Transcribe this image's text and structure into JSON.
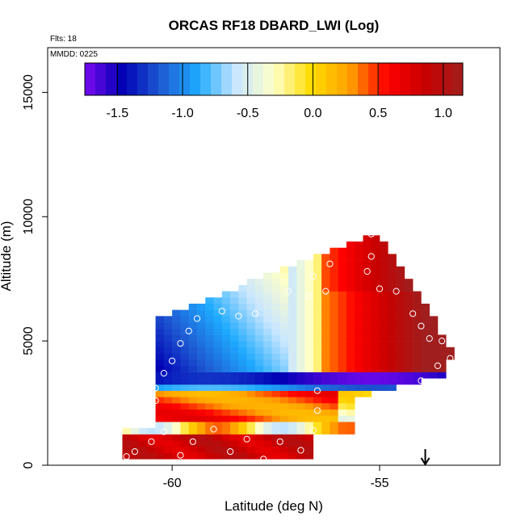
{
  "chart_data": {
    "type": "heatmap",
    "title": "ORCAS RF18 DBARD_LWI (Log)",
    "annotations": {
      "flights": "Flts: 18",
      "date": "MMDD: 0225"
    },
    "xlabel": "Latitude (deg N)",
    "ylabel": "Altitude (m)",
    "xlim": [
      -63,
      -52.1
    ],
    "ylim": [
      0,
      16800
    ],
    "x_ticks": [
      {
        "value": -60,
        "label": "-60"
      },
      {
        "value": -55,
        "label": "-55"
      }
    ],
    "y_ticks": [
      {
        "value": 0,
        "label": "0"
      },
      {
        "value": 5000,
        "label": "5000"
      },
      {
        "value": 10000,
        "label": "10000"
      },
      {
        "value": 15000,
        "label": "15000"
      }
    ],
    "colorbar": {
      "range": [
        -1.75,
        1.15
      ],
      "ticks": [
        {
          "value": -1.5,
          "label": "-1.5"
        },
        {
          "value": -1.0,
          "label": "-1.0"
        },
        {
          "value": -0.5,
          "label": "-0.5"
        },
        {
          "value": 0.0,
          "label": "0.0"
        },
        {
          "value": 0.5,
          "label": "0.5"
        },
        {
          "value": 1.0,
          "label": "1.0"
        }
      ],
      "colors": [
        "#7a0af0",
        "#0000b4",
        "#1e5ad2",
        "#1eaaff",
        "#c8e6ff",
        "#ffffc8",
        "#ffdc00",
        "#ffa000",
        "#ff0000",
        "#c80000",
        "#a01e1e"
      ]
    },
    "grid": false,
    "marker": {
      "latitude": -53.9,
      "symbol": "down-arrow"
    },
    "bins": {
      "lat_start": -61.2,
      "lat_step": 0.2,
      "alt_step": 250,
      "columns": [
        {
          "alt_min": 250,
          "alt_max": 1250,
          "top_value": 1.0,
          "mid_value": 1.0,
          "bottom_value": 1.0
        },
        {
          "alt_min": 250,
          "alt_max": 1500,
          "top_value": 1.0,
          "mid_value": 1.0,
          "bottom_value": 1.0
        },
        {
          "alt_min": 250,
          "alt_max": 6000,
          "top_value": -1.6,
          "mid_value": -1.5,
          "bottom_value": 1.0
        }
      ]
    },
    "regions": [
      {
        "name": "upper-left-cold",
        "lat": [
          -60.4,
          -57.2
        ],
        "alt": [
          3500,
          7400
        ],
        "value": -1.2
      },
      {
        "name": "upper-mid-light",
        "lat": [
          -57.2,
          -56.2
        ],
        "alt": [
          3700,
          7600
        ],
        "value": -0.3
      },
      {
        "name": "upper-right-warm",
        "lat": [
          -56.2,
          -53.2
        ],
        "alt": [
          3600,
          9300
        ],
        "value": 0.9
      },
      {
        "name": "mid-cold-band",
        "lat": [
          -61.0,
          -53.6
        ],
        "alt": [
          3000,
          3700
        ],
        "value": -1.4
      },
      {
        "name": "lower-mixed",
        "lat": [
          -61.0,
          -54.0
        ],
        "alt": [
          1500,
          3000
        ],
        "value": 0.4
      },
      {
        "name": "low-light",
        "lat": [
          -61.0,
          -56.6
        ],
        "alt": [
          1200,
          1800
        ],
        "value": -0.2
      },
      {
        "name": "surface-warm",
        "lat": [
          -61.3,
          -56.6
        ],
        "alt": [
          250,
          1200
        ],
        "value": 1.0
      }
    ],
    "observations": [
      {
        "lat": -61.1,
        "alt": 350
      },
      {
        "lat": -60.9,
        "alt": 550
      },
      {
        "lat": -60.5,
        "alt": 950
      },
      {
        "lat": -60.2,
        "alt": 1350
      },
      {
        "lat": -59.8,
        "alt": 400
      },
      {
        "lat": -59.5,
        "alt": 950
      },
      {
        "lat": -59.0,
        "alt": 1450
      },
      {
        "lat": -58.6,
        "alt": 550
      },
      {
        "lat": -58.2,
        "alt": 1050
      },
      {
        "lat": -57.8,
        "alt": 250
      },
      {
        "lat": -57.4,
        "alt": 950
      },
      {
        "lat": -56.9,
        "alt": 600
      },
      {
        "lat": -56.6,
        "alt": 1400
      },
      {
        "lat": -56.5,
        "alt": 2200
      },
      {
        "lat": -56.5,
        "alt": 3000
      },
      {
        "lat": -60.4,
        "alt": 2600
      },
      {
        "lat": -60.4,
        "alt": 3100
      },
      {
        "lat": -60.2,
        "alt": 3700
      },
      {
        "lat": -60.0,
        "alt": 4200
      },
      {
        "lat": -59.8,
        "alt": 4900
      },
      {
        "lat": -59.6,
        "alt": 5400
      },
      {
        "lat": -59.4,
        "alt": 5900
      },
      {
        "lat": -58.8,
        "alt": 6200
      },
      {
        "lat": -58.4,
        "alt": 6000
      },
      {
        "lat": -58.0,
        "alt": 6100
      },
      {
        "lat": -57.2,
        "alt": 7000
      },
      {
        "lat": -56.7,
        "alt": 6800
      },
      {
        "lat": -56.6,
        "alt": 7600
      },
      {
        "lat": -56.2,
        "alt": 8100
      },
      {
        "lat": -55.3,
        "alt": 7800
      },
      {
        "lat": -55.2,
        "alt": 8400
      },
      {
        "lat": -55.0,
        "alt": 7100
      },
      {
        "lat": -54.6,
        "alt": 7000
      },
      {
        "lat": -54.2,
        "alt": 6100
      },
      {
        "lat": -54.0,
        "alt": 5600
      },
      {
        "lat": -53.8,
        "alt": 5100
      },
      {
        "lat": -53.5,
        "alt": 5000
      },
      {
        "lat": -53.3,
        "alt": 4300
      },
      {
        "lat": -53.6,
        "alt": 4000
      },
      {
        "lat": -54.0,
        "alt": 3400
      },
      {
        "lat": -53.4,
        "alt": 2900
      },
      {
        "lat": -55.2,
        "alt": 9300
      },
      {
        "lat": -56.3,
        "alt": 7000
      }
    ]
  }
}
